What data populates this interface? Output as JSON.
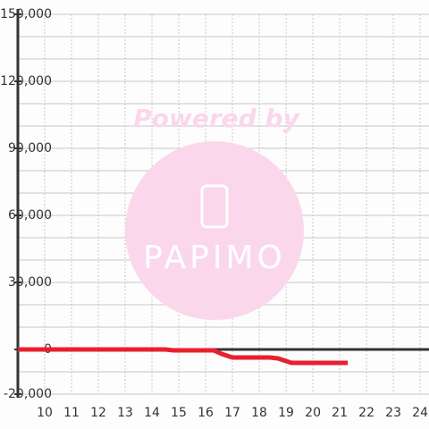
{
  "chart_data": {
    "type": "line",
    "x": [
      9,
      14.5,
      14.8,
      16.3,
      16.6,
      17,
      18.4,
      18.7,
      19.2,
      21.3
    ],
    "series": [
      {
        "color": "#e8202e",
        "values": [
          0,
          0,
          -400,
          -400,
          -2000,
          -3600,
          -3600,
          -4000,
          -6000,
          -6000
        ]
      }
    ],
    "xlim": [
      9,
      24.33
    ],
    "xticks": [
      10,
      11,
      12,
      13,
      14,
      15,
      16,
      17,
      18,
      19,
      20,
      21,
      22,
      23,
      24
    ],
    "ylim": [
      -20000,
      150000
    ],
    "yticks": [
      {
        "value": -20000,
        "label": "-20,000"
      },
      0,
      {
        "value": 30000,
        "label": "30,000"
      },
      {
        "value": 60000,
        "label": "60,000"
      },
      {
        "value": 90000,
        "label": "90,000"
      },
      {
        "value": 120000,
        "label": "120,000"
      },
      {
        "value": 150000,
        "label": "150,000"
      }
    ],
    "yminorticks": [
      -10000,
      10000,
      20000,
      40000,
      50000,
      70000,
      80000,
      100000,
      110000,
      130000,
      140000
    ],
    "grid": true,
    "watermark": {
      "top": "Powered by",
      "logo": "PAPIMO"
    }
  }
}
